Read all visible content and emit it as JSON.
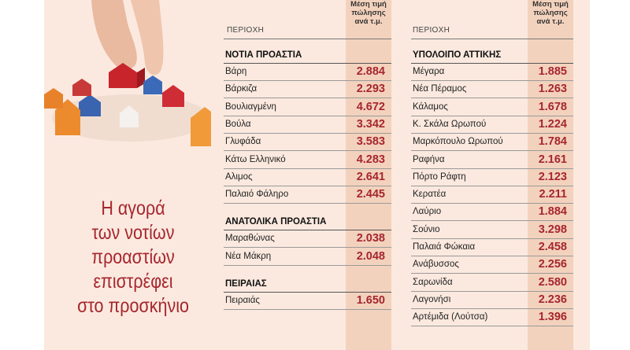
{
  "headline": [
    "Η αγορά",
    "των νοτίων",
    "προαστίων",
    "επιστρέφει",
    "στο προσκήνιο"
  ],
  "table_left": {
    "region_header": "ΠΕΡΙΟΧΗ",
    "price_header": [
      "Μέση τιμή",
      "πώλησης",
      "ανά τ.μ."
    ],
    "sections": [
      {
        "title": "ΝΟΤΙΑ ΠΡΟΑΣΤΙΑ",
        "rows": [
          [
            "Βάρη",
            "2.884"
          ],
          [
            "Βάρκιζα",
            "2.293"
          ],
          [
            "Βουλιαγμένη",
            "4.672"
          ],
          [
            "Βούλα",
            "3.342"
          ],
          [
            "Γλυφάδα",
            "3.583"
          ],
          [
            "Κάτω Ελληνικό",
            "4.283"
          ],
          [
            "Αλιμος",
            "2.641"
          ],
          [
            "Παλαιό Φάληρο",
            "2.445"
          ]
        ]
      },
      {
        "title": "ΑΝΑΤΟΛΙΚΑ ΠΡΟΑΣΤΙΑ",
        "rows": [
          [
            "Μαραθώνας",
            "2.038"
          ],
          [
            "Νέα Μάκρη",
            "2.048"
          ]
        ]
      },
      {
        "title": "ΠΕΙΡΑΙΑΣ",
        "rows": [
          [
            "Πειραιάς",
            "1.650"
          ]
        ]
      }
    ]
  },
  "table_right": {
    "region_header": "ΠΕΡΙΟΧΗ",
    "price_header": [
      "Μέση τιμή",
      "πώλησης",
      "ανά τ.μ."
    ],
    "sections": [
      {
        "title": "ΥΠΟΛΟΙΠΟ ΑΤΤΙΚΗΣ",
        "rows": [
          [
            "Μέγαρα",
            "1.885"
          ],
          [
            "Νέα Πέραμος",
            "1.263"
          ],
          [
            "Κάλαμος",
            "1.678"
          ],
          [
            "Κ. Σκάλα Ωρωπού",
            "1.224"
          ],
          [
            "Μαρκόπουλο Ωρωπού",
            "1.784"
          ],
          [
            "Ραφήνα",
            "2.161"
          ],
          [
            "Πόρτο Ράφτη",
            "2.123"
          ],
          [
            "Κερατέα",
            "2.211"
          ],
          [
            "Λαύριο",
            "1.884"
          ],
          [
            "Σούνιο",
            "3.298"
          ],
          [
            "Παλαιά Φώκαια",
            "2.458"
          ],
          [
            "Ανάβυσσος",
            "2.256"
          ],
          [
            "Σαρωνίδα",
            "2.580"
          ],
          [
            "Λαγονήσι",
            "2.236"
          ],
          [
            "Αρτέμιδα (Λούτσα)",
            "1.396"
          ]
        ]
      }
    ]
  },
  "colors": {
    "accent": "#a6262d",
    "panel": "#fbe9df",
    "price_column": "#f3d2bd"
  }
}
